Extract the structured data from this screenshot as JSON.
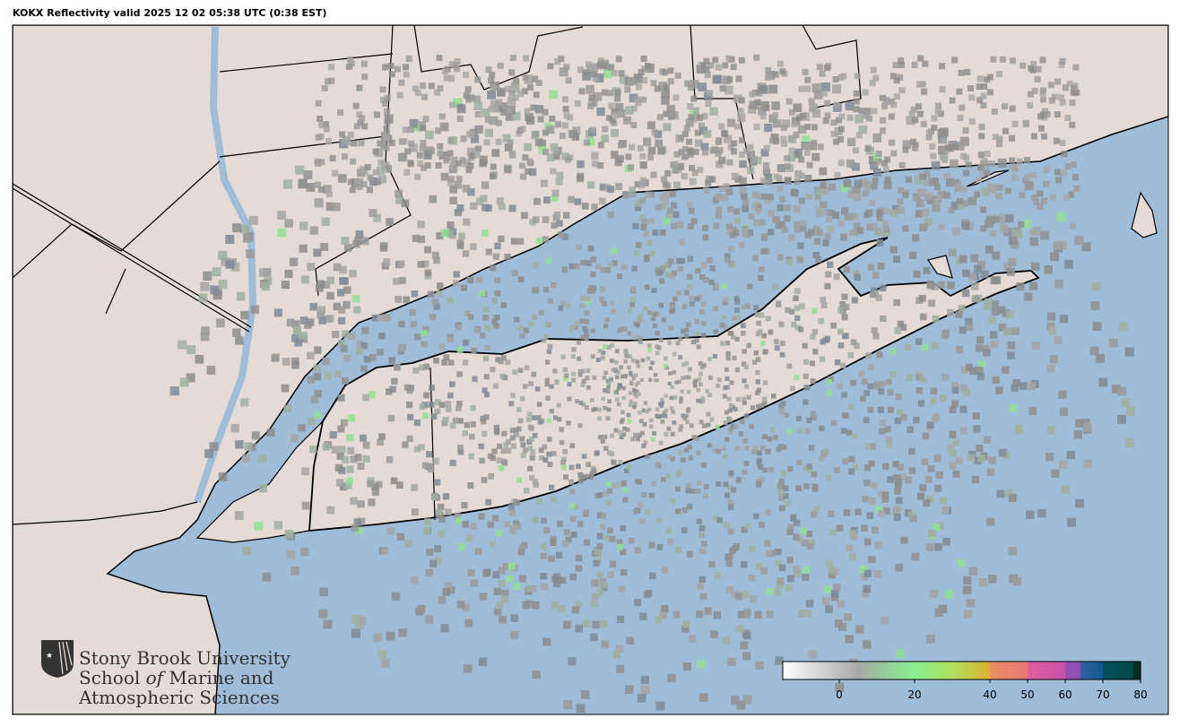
{
  "title": "KOKX Reflectivity valid 2025 12 02 05:38 UTC (0:38 EST)",
  "map": {
    "colors": {
      "ocean": "#9fbcd8",
      "land": "#e4dad6",
      "border": "#000000"
    },
    "radar_site": "KOKX"
  },
  "logo": {
    "line1": "Stony Brook University",
    "line2a": "School ",
    "line2b": "of",
    "line2c": " Marine and",
    "line3": "Atmospheric Sciences"
  },
  "colorbar": {
    "min": -15,
    "max": 80,
    "ticks": [
      {
        "value": 0,
        "label": "0"
      },
      {
        "value": 20,
        "label": "20"
      },
      {
        "value": 40,
        "label": "40"
      },
      {
        "value": 50,
        "label": "50"
      },
      {
        "value": 60,
        "label": "60"
      },
      {
        "value": 70,
        "label": "70"
      },
      {
        "value": 80,
        "label": "80"
      }
    ],
    "stops": [
      {
        "value": -15,
        "color": "#ffffff"
      },
      {
        "value": 5,
        "color": "#a8a8a8"
      },
      {
        "value": 20,
        "color": "#88f08e"
      },
      {
        "value": 30,
        "color": "#b0e060"
      },
      {
        "value": 40,
        "color": "#dcb030"
      },
      {
        "value": 40.1,
        "color": "#e89060"
      },
      {
        "value": 50,
        "color": "#e87878"
      },
      {
        "value": 50.1,
        "color": "#e060a0"
      },
      {
        "value": 60,
        "color": "#c850a8"
      },
      {
        "value": 60.1,
        "color": "#9050b0"
      },
      {
        "value": 64,
        "color": "#9050b0"
      },
      {
        "value": 64.1,
        "color": "#3060a0"
      },
      {
        "value": 70,
        "color": "#105890"
      },
      {
        "value": 70.1,
        "color": "#005060"
      },
      {
        "value": 78,
        "color": "#004848"
      },
      {
        "value": 78.1,
        "color": "#003020"
      },
      {
        "value": 80,
        "color": "#003020"
      }
    ]
  }
}
